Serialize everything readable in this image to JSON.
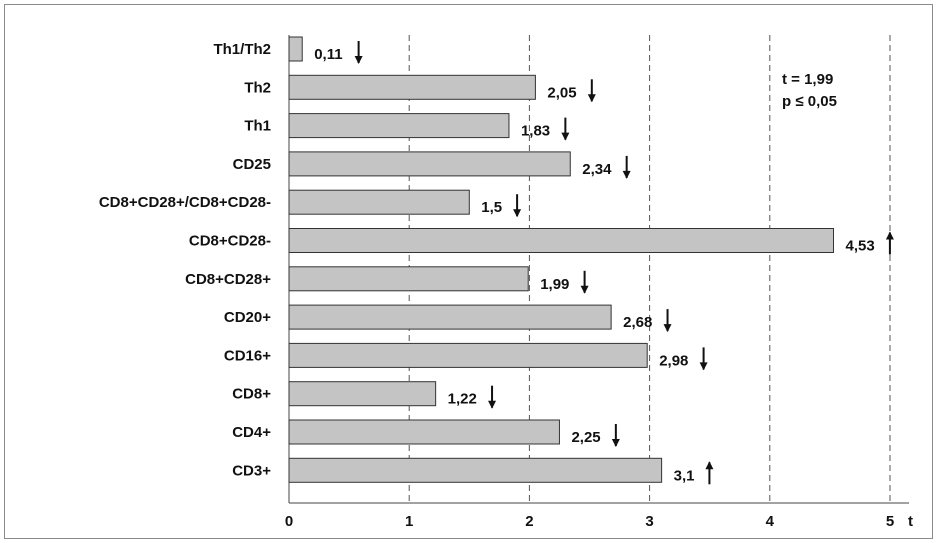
{
  "chart_data": {
    "type": "bar",
    "orientation": "horizontal",
    "categories": [
      "Th1/Th2",
      "Th2",
      "Th1",
      "CD25",
      "CD8+CD28+/CD8+CD28-",
      "CD8+CD28-",
      "CD8+CD28+",
      "CD20+",
      "CD16+",
      "CD8+",
      "CD4+",
      "CD3+"
    ],
    "values": [
      0.11,
      2.05,
      1.83,
      2.34,
      1.5,
      4.53,
      1.99,
      2.68,
      2.98,
      1.22,
      2.25,
      3.1
    ],
    "value_labels": [
      "0,11",
      "2,05",
      "1,83",
      "2,34",
      "1,5",
      "4,53",
      "1,99",
      "2,68",
      "2,98",
      "1,22",
      "2,25",
      "3,1"
    ],
    "directions": [
      "down",
      "down",
      "down",
      "down",
      "down",
      "up",
      "down",
      "down",
      "down",
      "down",
      "down",
      "up"
    ],
    "xlabel": "t",
    "xlim": [
      0,
      5
    ],
    "xticks": [
      "0",
      "1",
      "2",
      "3",
      "4",
      "5"
    ],
    "grid": "vertical-dashed",
    "bar_color": "#c4c4c4",
    "annotation": [
      "t = 1,99",
      "p ≤ 0,05"
    ]
  }
}
